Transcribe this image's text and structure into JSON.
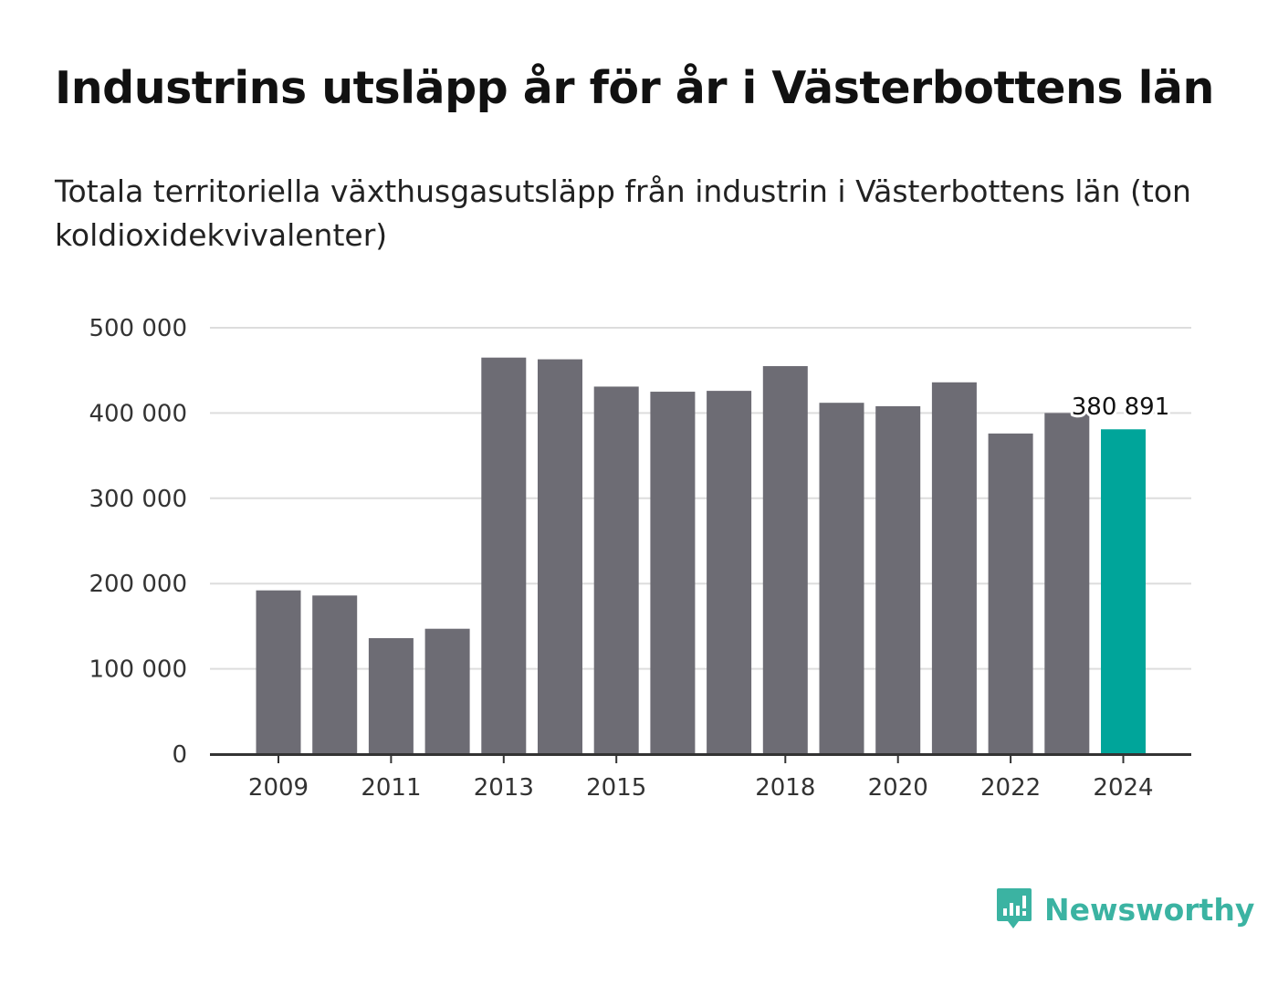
{
  "chart_data": {
    "type": "bar",
    "title": "Industrins utsläpp år för år i Västerbottens län",
    "subtitle": "Totala territoriella växthusgasutsläpp från industrin i Västerbottens län (ton koldioxidekvivalenter)",
    "categories": [
      "2009",
      "2010",
      "2011",
      "2012",
      "2013",
      "2014",
      "2015",
      "2016",
      "2017",
      "2018",
      "2019",
      "2020",
      "2021",
      "2022",
      "2023",
      "2024"
    ],
    "x_tick_labels": [
      "2009",
      "",
      "2011",
      "",
      "2013",
      "",
      "2015",
      "",
      "",
      "2018",
      "",
      "2020",
      "",
      "2022",
      "",
      "2024"
    ],
    "values": [
      192000,
      186000,
      136000,
      147000,
      465000,
      463000,
      431000,
      425000,
      426000,
      455000,
      412000,
      408000,
      436000,
      376000,
      400000,
      380891
    ],
    "ylim": [
      0,
      500000
    ],
    "y_ticks": [
      0,
      100000,
      200000,
      300000,
      400000,
      500000
    ],
    "y_tick_labels": [
      "0",
      "100 000",
      "200 000",
      "300 000",
      "400 000",
      "500 000"
    ],
    "data_label": {
      "index": 15,
      "text": "380 891"
    },
    "colors": {
      "bar": "#6d6c74",
      "highlight": "#00a59a",
      "grid": "#dddddd",
      "axis": "#333333"
    },
    "grid": true,
    "xlabel": "",
    "ylabel": ""
  },
  "brand": {
    "name": "Newsworthy",
    "icon": "newsworthy-logo-icon",
    "color": "#3bb3a2"
  }
}
